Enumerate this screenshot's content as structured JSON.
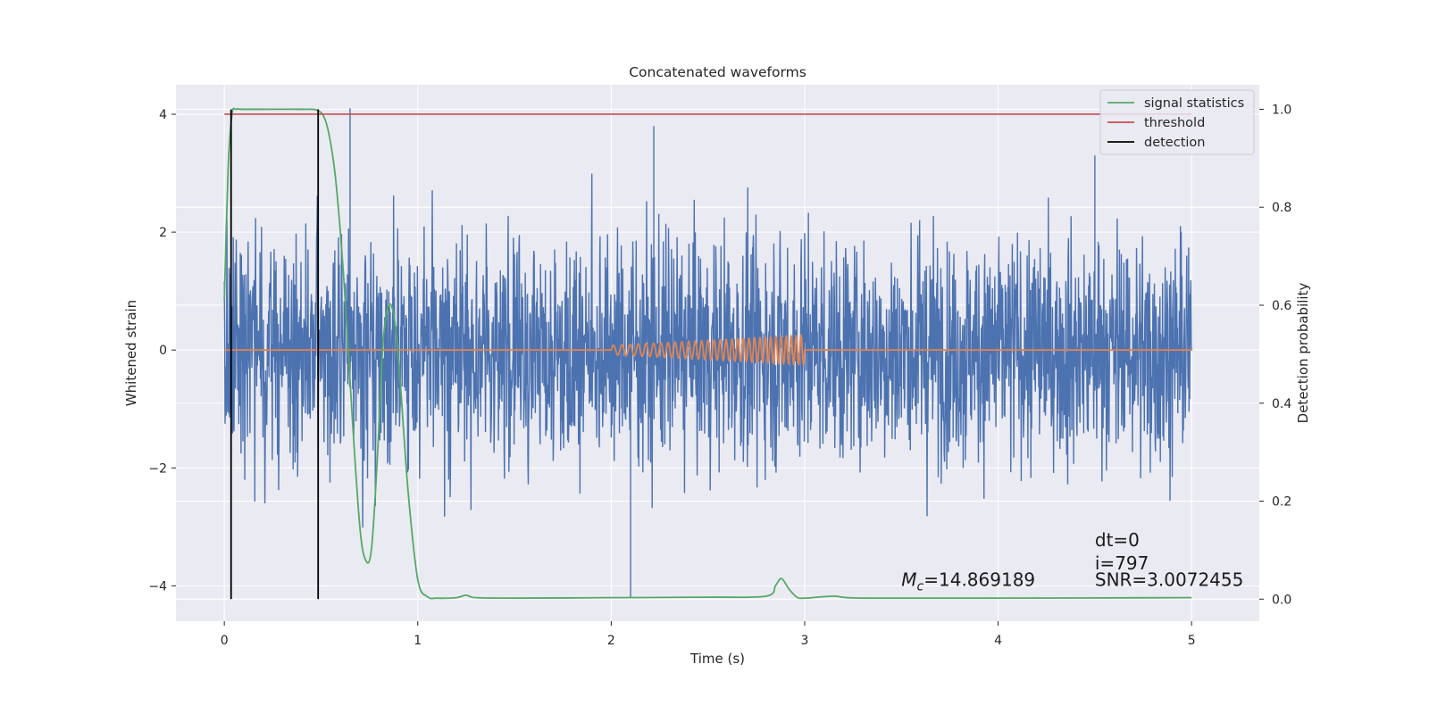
{
  "chart_data": {
    "type": "line",
    "title": "Concatenated waveforms",
    "xlabel": "Time (s)",
    "ylabel": "Whitened strain",
    "y2label": "Detection probability",
    "xlim": [
      -0.25,
      5.35
    ],
    "ylim": [
      -4.6,
      4.5
    ],
    "y2lim": [
      -0.045,
      1.05
    ],
    "xticks": [
      0,
      1,
      2,
      3,
      4,
      5
    ],
    "yticks": [
      -4,
      -2,
      0,
      2,
      4
    ],
    "y2ticks": [
      0.0,
      0.2,
      0.4,
      0.6,
      0.8,
      1.0
    ],
    "xtick_labels": [
      "0",
      "1",
      "2",
      "3",
      "4",
      "5"
    ],
    "ytick_labels": [
      "−4",
      "−2",
      "0",
      "2",
      "4"
    ],
    "y2tick_labels": [
      "0.0",
      "0.2",
      "0.4",
      "0.6",
      "0.8",
      "1.0"
    ],
    "grid": true,
    "background": "#eaeaf2",
    "legend_position": "upper-right",
    "series": [
      {
        "name": "",
        "axis": "left",
        "color": "#4c72b0",
        "kind": "noise",
        "x_range": [
          0,
          5
        ],
        "typical_amplitude": 1.0,
        "max": 4.1,
        "min": -4.2
      },
      {
        "name": "",
        "axis": "left",
        "color": "#dd8452",
        "kind": "chirp",
        "x_range": [
          0,
          5
        ],
        "chirp_start": 2.0,
        "chirp_end": 3.0,
        "chirp_amplitude": [
          0.08,
          0.25
        ]
      },
      {
        "name": "signal statistics",
        "axis": "right",
        "color": "#55a868",
        "x": [
          0.0,
          0.02,
          0.04,
          0.06,
          0.1,
          0.2,
          0.4,
          0.48,
          0.52,
          0.55,
          0.58,
          0.62,
          0.66,
          0.7,
          0.73,
          0.76,
          0.79,
          0.82,
          0.85,
          0.88,
          0.91,
          0.95,
          1.0,
          1.05,
          1.1,
          1.2,
          1.25,
          1.3,
          1.5,
          2.0,
          2.5,
          2.8,
          2.85,
          2.88,
          2.92,
          2.96,
          3.0,
          3.15,
          3.3,
          4.0,
          5.0
        ],
        "y": [
          0.61,
          0.88,
          0.99,
          1.0,
          1.0,
          1.0,
          1.0,
          0.998,
          0.98,
          0.93,
          0.84,
          0.64,
          0.38,
          0.15,
          0.08,
          0.1,
          0.28,
          0.52,
          0.6,
          0.57,
          0.44,
          0.22,
          0.04,
          0.005,
          0.002,
          0.003,
          0.008,
          0.003,
          0.002,
          0.003,
          0.004,
          0.006,
          0.028,
          0.042,
          0.02,
          0.004,
          0.002,
          0.006,
          0.002,
          0.002,
          0.003
        ]
      },
      {
        "name": "threshold",
        "axis": "right",
        "color": "#c44e52",
        "x": [
          0,
          5
        ],
        "y": [
          0.99,
          0.99
        ]
      },
      {
        "name": "detection",
        "axis": "right",
        "color": "#000000",
        "kind": "vlines",
        "x": [
          0.035,
          0.485
        ],
        "y": [
          0.0,
          1.0
        ]
      }
    ],
    "annotations": {
      "mc": "=14.869189",
      "dt": "dt=0",
      "i": "i=797",
      "snr": "SNR=3.0072455"
    }
  }
}
